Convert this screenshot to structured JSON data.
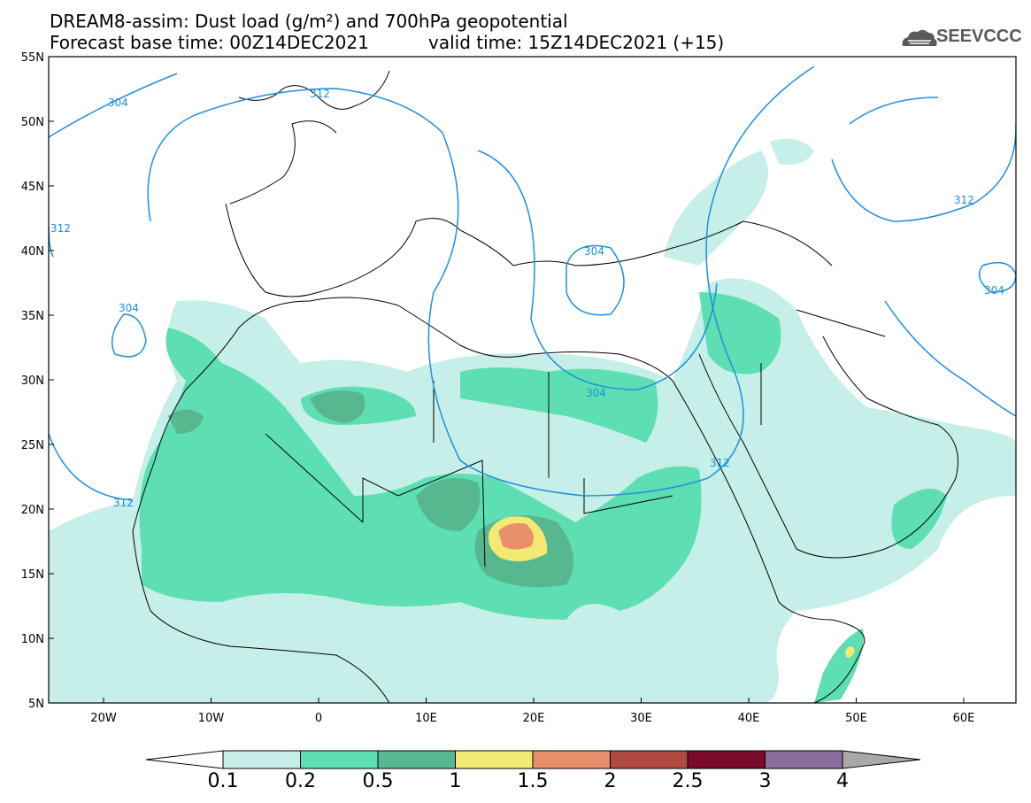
{
  "header": {
    "title_line1": "DREAM8-assim: Dust load (g/m²) and 700hPa geopotential",
    "title_line2": "Forecast base time: 00Z14DEC2021",
    "valid_time": "valid time: 15Z14DEC2021 (+15)",
    "logo_text": "SEEVCCC"
  },
  "axes": {
    "lat_labels": [
      "55N",
      "50N",
      "45N",
      "40N",
      "35N",
      "30N",
      "25N",
      "20N",
      "15N",
      "10N",
      "5N"
    ],
    "lon_labels": [
      "20W",
      "10W",
      "0",
      "10E",
      "20E",
      "30E",
      "40E",
      "50E",
      "60E"
    ]
  },
  "contours": {
    "labels": [
      "304",
      "312",
      "312",
      "304",
      "312",
      "304",
      "304",
      "312",
      "312",
      "304"
    ]
  },
  "colorbar": {
    "colors": [
      "#c5efe8",
      "#5ddfb3",
      "#57b78f",
      "#f3ea74",
      "#e98e6b",
      "#b04a40",
      "#7b0b2b",
      "#8c6b9d"
    ],
    "tick_labels": [
      "0.1",
      "0.2",
      "0.5",
      "1",
      "1.5",
      "2",
      "2.5",
      "3",
      "4"
    ]
  },
  "style": {
    "contour_color": "#1e8fe0",
    "border_color": "#000000"
  }
}
